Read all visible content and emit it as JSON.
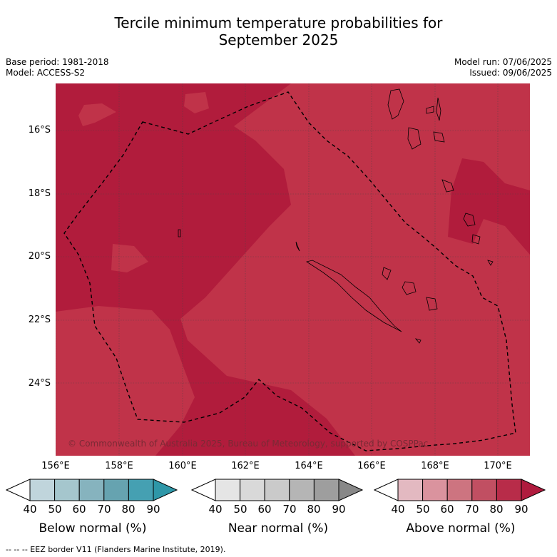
{
  "title_line1": "Tercile minimum temperature probabilities for",
  "title_line2": "September 2025",
  "base_period": "Base period: 1981-2018",
  "model": "Model: ACCESS-S2",
  "model_run": "Model run: 07/06/2025",
  "issued": "Issued: 09/06/2025",
  "copyright": "© Commonwealth of Australia 2025, Bureau of Meteorology, supported by COSPPac",
  "lat_labels": [
    "16°S",
    "18°S",
    "20°S",
    "22°S",
    "24°S"
  ],
  "lon_labels": [
    "156°E",
    "158°E",
    "160°E",
    "162°E",
    "164°E",
    "166°E",
    "168°E",
    "170°E"
  ],
  "colorbars": [
    {
      "title": "Below normal (%)",
      "ticks": [
        "40",
        "50",
        "60",
        "70",
        "80",
        "90"
      ],
      "colors": [
        "#ffffff",
        "#c0d5dc",
        "#a5c6cd",
        "#86b3be",
        "#66a3b0",
        "#45a0b2",
        "#2e97a8"
      ]
    },
    {
      "title": "Near normal (%)",
      "ticks": [
        "40",
        "50",
        "60",
        "70",
        "80",
        "90"
      ],
      "colors": [
        "#ffffff",
        "#e5e5e5",
        "#d9d9d9",
        "#cacaca",
        "#b5b5b5",
        "#9e9e9e",
        "#888888"
      ]
    },
    {
      "title": "Above normal (%)",
      "ticks": [
        "40",
        "50",
        "60",
        "70",
        "80",
        "90"
      ],
      "colors": [
        "#ffffff",
        "#e3b9c1",
        "#da939e",
        "#cd7480",
        "#c14f62",
        "#b82c49",
        "#b01b3e"
      ]
    }
  ],
  "footer": "--  --  -- EEZ border V11 (Flanders Marine Institute, 2019).",
  "colors": {
    "above_80_90": "#b11c3c",
    "above_70_80": "#c03349"
  }
}
